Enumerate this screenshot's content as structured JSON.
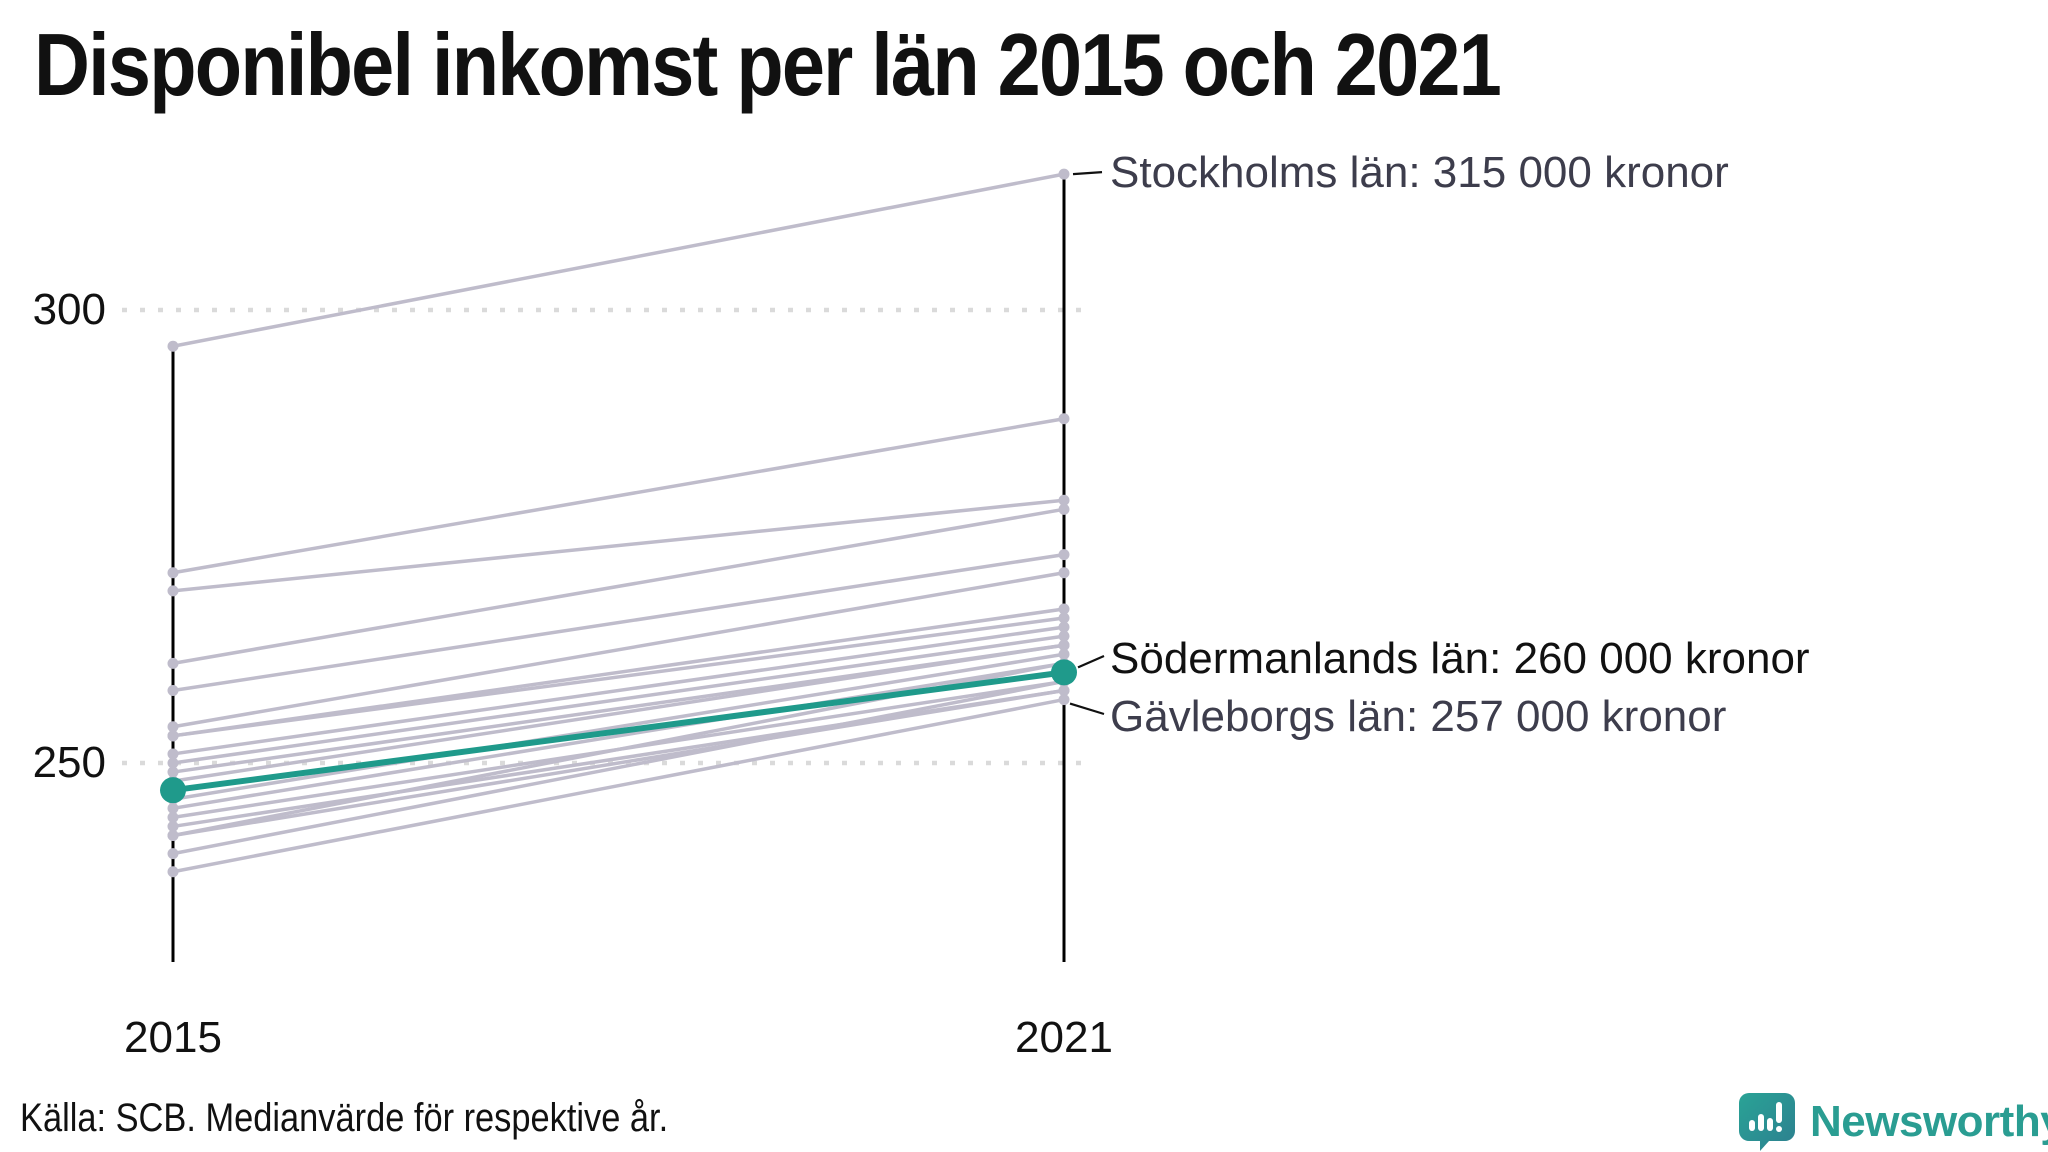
{
  "title": "Disponibel inkomst per län 2015 och 2021",
  "source": "Källa: SCB. Medianvärde för respektive år.",
  "logo": {
    "text": "Newsworthy"
  },
  "axis": {
    "x_labels": [
      "2015",
      "2021"
    ],
    "y_ticks": [
      300,
      250
    ]
  },
  "annotations": [
    {
      "id": "stockholm",
      "label": "Stockholms län: 315 000 kronor"
    },
    {
      "id": "sodermanland",
      "label": "Södermanlands län: 260 000 kronor"
    },
    {
      "id": "gavleborg",
      "label": "Gävleborgs län: 257 000 kronor"
    }
  ],
  "colors": {
    "highlight": "#1f9a8b",
    "gray_line": "#bfbccb",
    "grid": "#dadada",
    "axis": "#000000",
    "annotation_gray": "#3d3d4c",
    "text": "#111111",
    "logo": "#2a9d92",
    "pointer": "#111111"
  },
  "chart_data": {
    "type": "line",
    "subtype": "slopegraph",
    "title": "Disponibel inkomst per län 2015 och 2021",
    "xlabel": "",
    "ylabel": "",
    "unit": "tusen kronor (medianvärde)",
    "x": [
      "2015",
      "2021"
    ],
    "y_ticks": [
      250,
      300
    ],
    "ylim": [
      228,
      322
    ],
    "grid": "dotted horizontal at y ticks",
    "legend": "none",
    "series": [
      {
        "name": "Stockholms län",
        "values": [
          296,
          315
        ],
        "labeled": true,
        "highlight": false
      },
      {
        "name": null,
        "values": [
          271,
          288
        ],
        "highlight": false
      },
      {
        "name": null,
        "values": [
          269,
          279
        ],
        "highlight": false
      },
      {
        "name": null,
        "values": [
          261,
          278
        ],
        "highlight": false
      },
      {
        "name": null,
        "values": [
          258,
          273
        ],
        "highlight": false
      },
      {
        "name": null,
        "values": [
          254,
          271
        ],
        "highlight": false
      },
      {
        "name": null,
        "values": [
          253,
          267
        ],
        "highlight": false
      },
      {
        "name": null,
        "values": [
          253,
          266
        ],
        "highlight": false
      },
      {
        "name": null,
        "values": [
          251,
          265
        ],
        "highlight": false
      },
      {
        "name": null,
        "values": [
          250,
          264
        ],
        "highlight": false
      },
      {
        "name": null,
        "values": [
          249,
          263
        ],
        "highlight": false
      },
      {
        "name": null,
        "values": [
          248,
          263
        ],
        "highlight": false
      },
      {
        "name": "Södermanlands län",
        "values": [
          247,
          260
        ],
        "labeled": true,
        "highlight": true
      },
      {
        "name": null,
        "values": [
          246,
          262
        ],
        "highlight": false
      },
      {
        "name": null,
        "values": [
          245,
          261
        ],
        "highlight": false
      },
      {
        "name": null,
        "values": [
          244,
          259
        ],
        "highlight": false
      },
      {
        "name": null,
        "values": [
          243,
          258
        ],
        "highlight": false
      },
      {
        "name": null,
        "values": [
          242,
          258
        ],
        "highlight": false
      },
      {
        "name": null,
        "values": [
          242,
          261
        ],
        "highlight": false
      },
      {
        "name": null,
        "values": [
          240,
          259
        ],
        "highlight": false
      },
      {
        "name": "Gävleborgs län",
        "values": [
          238,
          257
        ],
        "labeled": true,
        "highlight": false
      }
    ]
  }
}
